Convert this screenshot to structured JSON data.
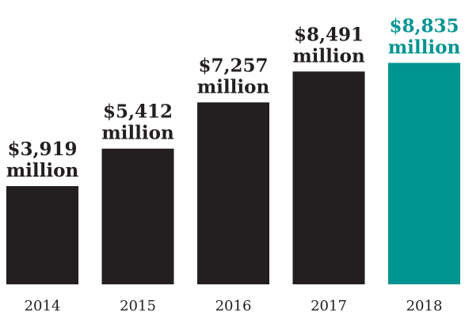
{
  "chart_data": {
    "type": "bar",
    "title": "",
    "xlabel": "",
    "ylabel": "",
    "categories": [
      "2014",
      "2015",
      "2016",
      "2017",
      "2018"
    ],
    "values": [
      3919,
      5412,
      7257,
      8491,
      8835
    ],
    "value_labels": [
      [
        "$3,919",
        "million"
      ],
      [
        "$5,412",
        "million"
      ],
      [
        "$7,257",
        "million"
      ],
      [
        "$8,491",
        "million"
      ],
      [
        "$8,835",
        "million"
      ]
    ],
    "colors": [
      "#231f20",
      "#231f20",
      "#231f20",
      "#231f20",
      "#009490"
    ],
    "highlight_color": "#009490",
    "base_color": "#231f20",
    "grid": false,
    "legend": "none"
  }
}
